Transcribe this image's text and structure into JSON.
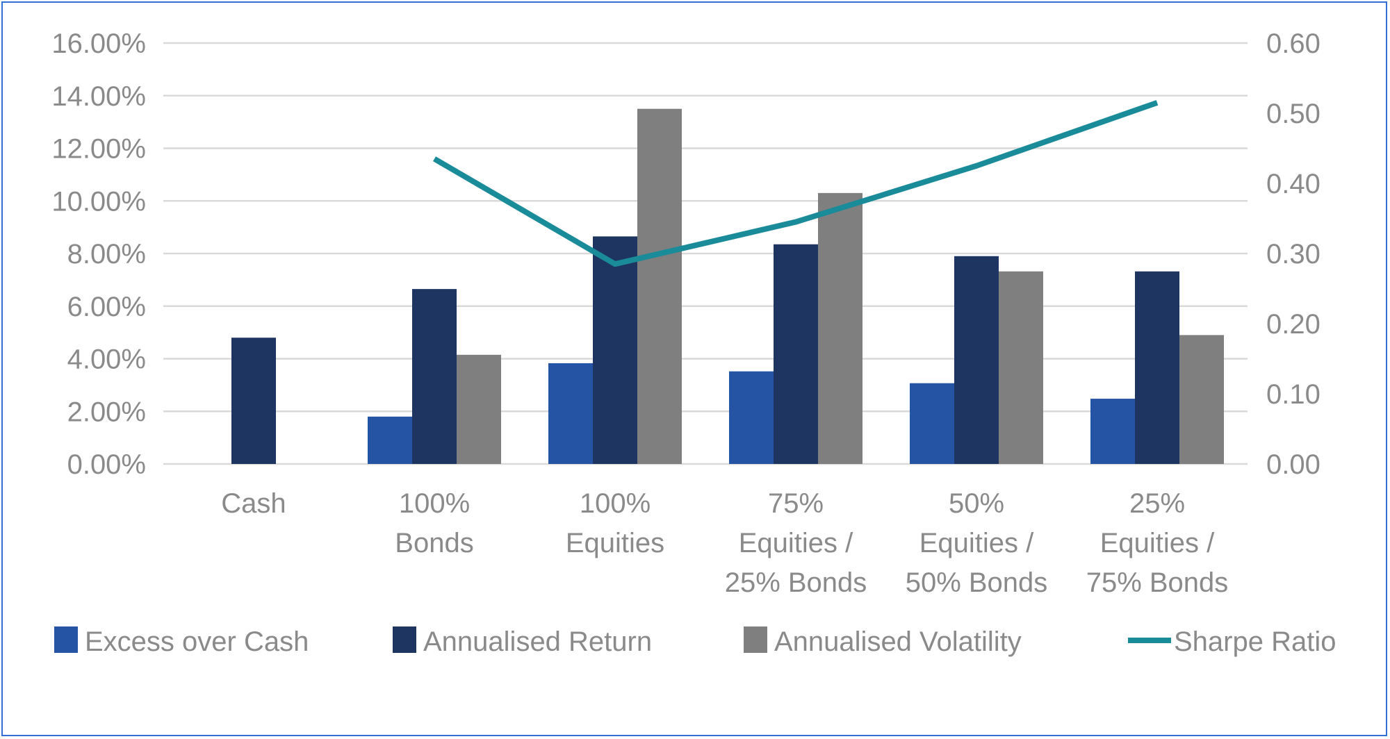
{
  "chart_data": {
    "type": "bar",
    "title": "",
    "categories": [
      [
        "Cash"
      ],
      [
        "100%",
        "Bonds"
      ],
      [
        "100%",
        "Equities"
      ],
      [
        "75%",
        "Equities /",
        "25% Bonds"
      ],
      [
        "50%",
        "Equities /",
        "50% Bonds"
      ],
      [
        "25%",
        "Equities /",
        "75% Bonds"
      ]
    ],
    "series": [
      {
        "name": "Excess over Cash",
        "kind": "bar",
        "axis": "left",
        "color": "#2554a4",
        "values": [
          null,
          0.018,
          0.0383,
          0.0352,
          0.0307,
          0.0248
        ]
      },
      {
        "name": "Annualised Return",
        "kind": "bar",
        "axis": "left",
        "color": "#1e3461",
        "values": [
          0.048,
          0.0665,
          0.0865,
          0.0835,
          0.079,
          0.0732
        ]
      },
      {
        "name": "Annualised Volatility",
        "kind": "bar",
        "axis": "left",
        "color": "#7f7f7f",
        "values": [
          null,
          0.0415,
          0.135,
          0.103,
          0.0732,
          0.049
        ]
      },
      {
        "name": "Sharpe Ratio",
        "kind": "line",
        "axis": "right",
        "color": "#1a8b99",
        "values": [
          null,
          0.435,
          0.285,
          0.345,
          0.425,
          0.515
        ]
      }
    ],
    "y_left": {
      "min": 0,
      "max": 0.16,
      "step": 0.02,
      "tick_labels": [
        "0.00%",
        "2.00%",
        "4.00%",
        "6.00%",
        "8.00%",
        "10.00%",
        "12.00%",
        "14.00%",
        "16.00%"
      ]
    },
    "y_right": {
      "min": 0,
      "max": 0.6,
      "step": 0.1,
      "tick_labels": [
        "0.00",
        "0.10",
        "0.20",
        "0.30",
        "0.40",
        "0.50",
        "0.60"
      ]
    },
    "grid": true,
    "legend_position": "bottom",
    "gridline_color": "#d9d9d9",
    "text_color": "#8a8a8a",
    "border_color": "#2f6fd6"
  }
}
